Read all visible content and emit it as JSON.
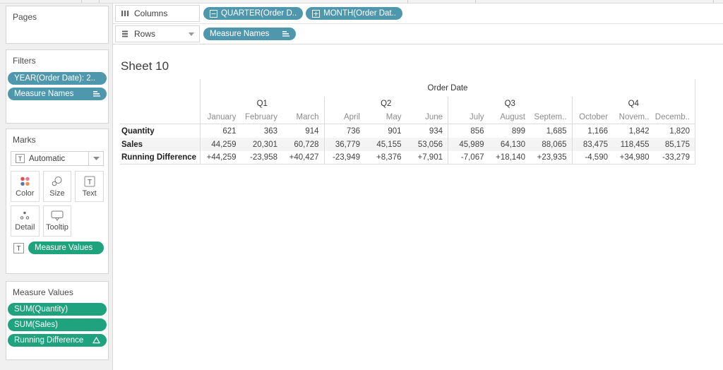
{
  "colors": {
    "pill_blue": "#4f97ad",
    "pill_green": "#1fa37e"
  },
  "shelves": {
    "columns": {
      "label": "Columns",
      "pills": [
        {
          "label": "QUARTER(Order D..",
          "icon": "minus-box"
        },
        {
          "label": "MONTH(Order Dat..",
          "icon": "plus-box"
        }
      ]
    },
    "rows": {
      "label": "Rows",
      "pills": [
        {
          "label": "Measure Names",
          "icon": "sort"
        }
      ]
    }
  },
  "sidebar": {
    "pages": {
      "title": "Pages"
    },
    "filters": {
      "title": "Filters",
      "pills": [
        {
          "label": "YEAR(Order Date): 2.."
        },
        {
          "label": "Measure Names",
          "icon": "sort"
        }
      ]
    },
    "marks": {
      "title": "Marks",
      "mark_type": "Automatic",
      "buttons": [
        {
          "label": "Color",
          "icon": "color"
        },
        {
          "label": "Size",
          "icon": "size"
        },
        {
          "label": "Text",
          "icon": "text"
        },
        {
          "label": "Detail",
          "icon": "detail"
        },
        {
          "label": "Tooltip",
          "icon": "tooltip"
        }
      ],
      "encodings": [
        {
          "label": "Measure Values",
          "icon": "t-box"
        }
      ]
    },
    "measure_values": {
      "title": "Measure Values",
      "pills": [
        {
          "label": "SUM(Quantity)"
        },
        {
          "label": "SUM(Sales)"
        },
        {
          "label": "Running Difference",
          "icon": "delta"
        }
      ]
    }
  },
  "canvas": {
    "sheet_title": "Sheet 10"
  },
  "chart_data": {
    "type": "table",
    "title": "Sheet 10",
    "column_header": "Order Date",
    "quarters": [
      {
        "label": "Q1",
        "months": [
          "January",
          "February",
          "March"
        ]
      },
      {
        "label": "Q2",
        "months": [
          "April",
          "May",
          "June"
        ]
      },
      {
        "label": "Q3",
        "months": [
          "July",
          "August",
          "Septem.."
        ]
      },
      {
        "label": "Q4",
        "months": [
          "October",
          "Novem..",
          "Decemb.."
        ]
      }
    ],
    "rows": [
      {
        "label": "Quantity",
        "values": [
          "621",
          "363",
          "914",
          "736",
          "901",
          "934",
          "856",
          "899",
          "1,685",
          "1,166",
          "1,842",
          "1,820"
        ]
      },
      {
        "label": "Sales",
        "values": [
          "44,259",
          "20,301",
          "60,728",
          "36,779",
          "45,155",
          "53,056",
          "45,989",
          "64,130",
          "88,065",
          "83,475",
          "118,455",
          "85,175"
        ]
      },
      {
        "label": "Running Difference",
        "values": [
          "+44,259",
          "-23,958",
          "+40,427",
          "-23,949",
          "+8,376",
          "+7,901",
          "-7,067",
          "+18,140",
          "+23,935",
          "-4,590",
          "+34,980",
          "-33,279"
        ]
      }
    ]
  }
}
